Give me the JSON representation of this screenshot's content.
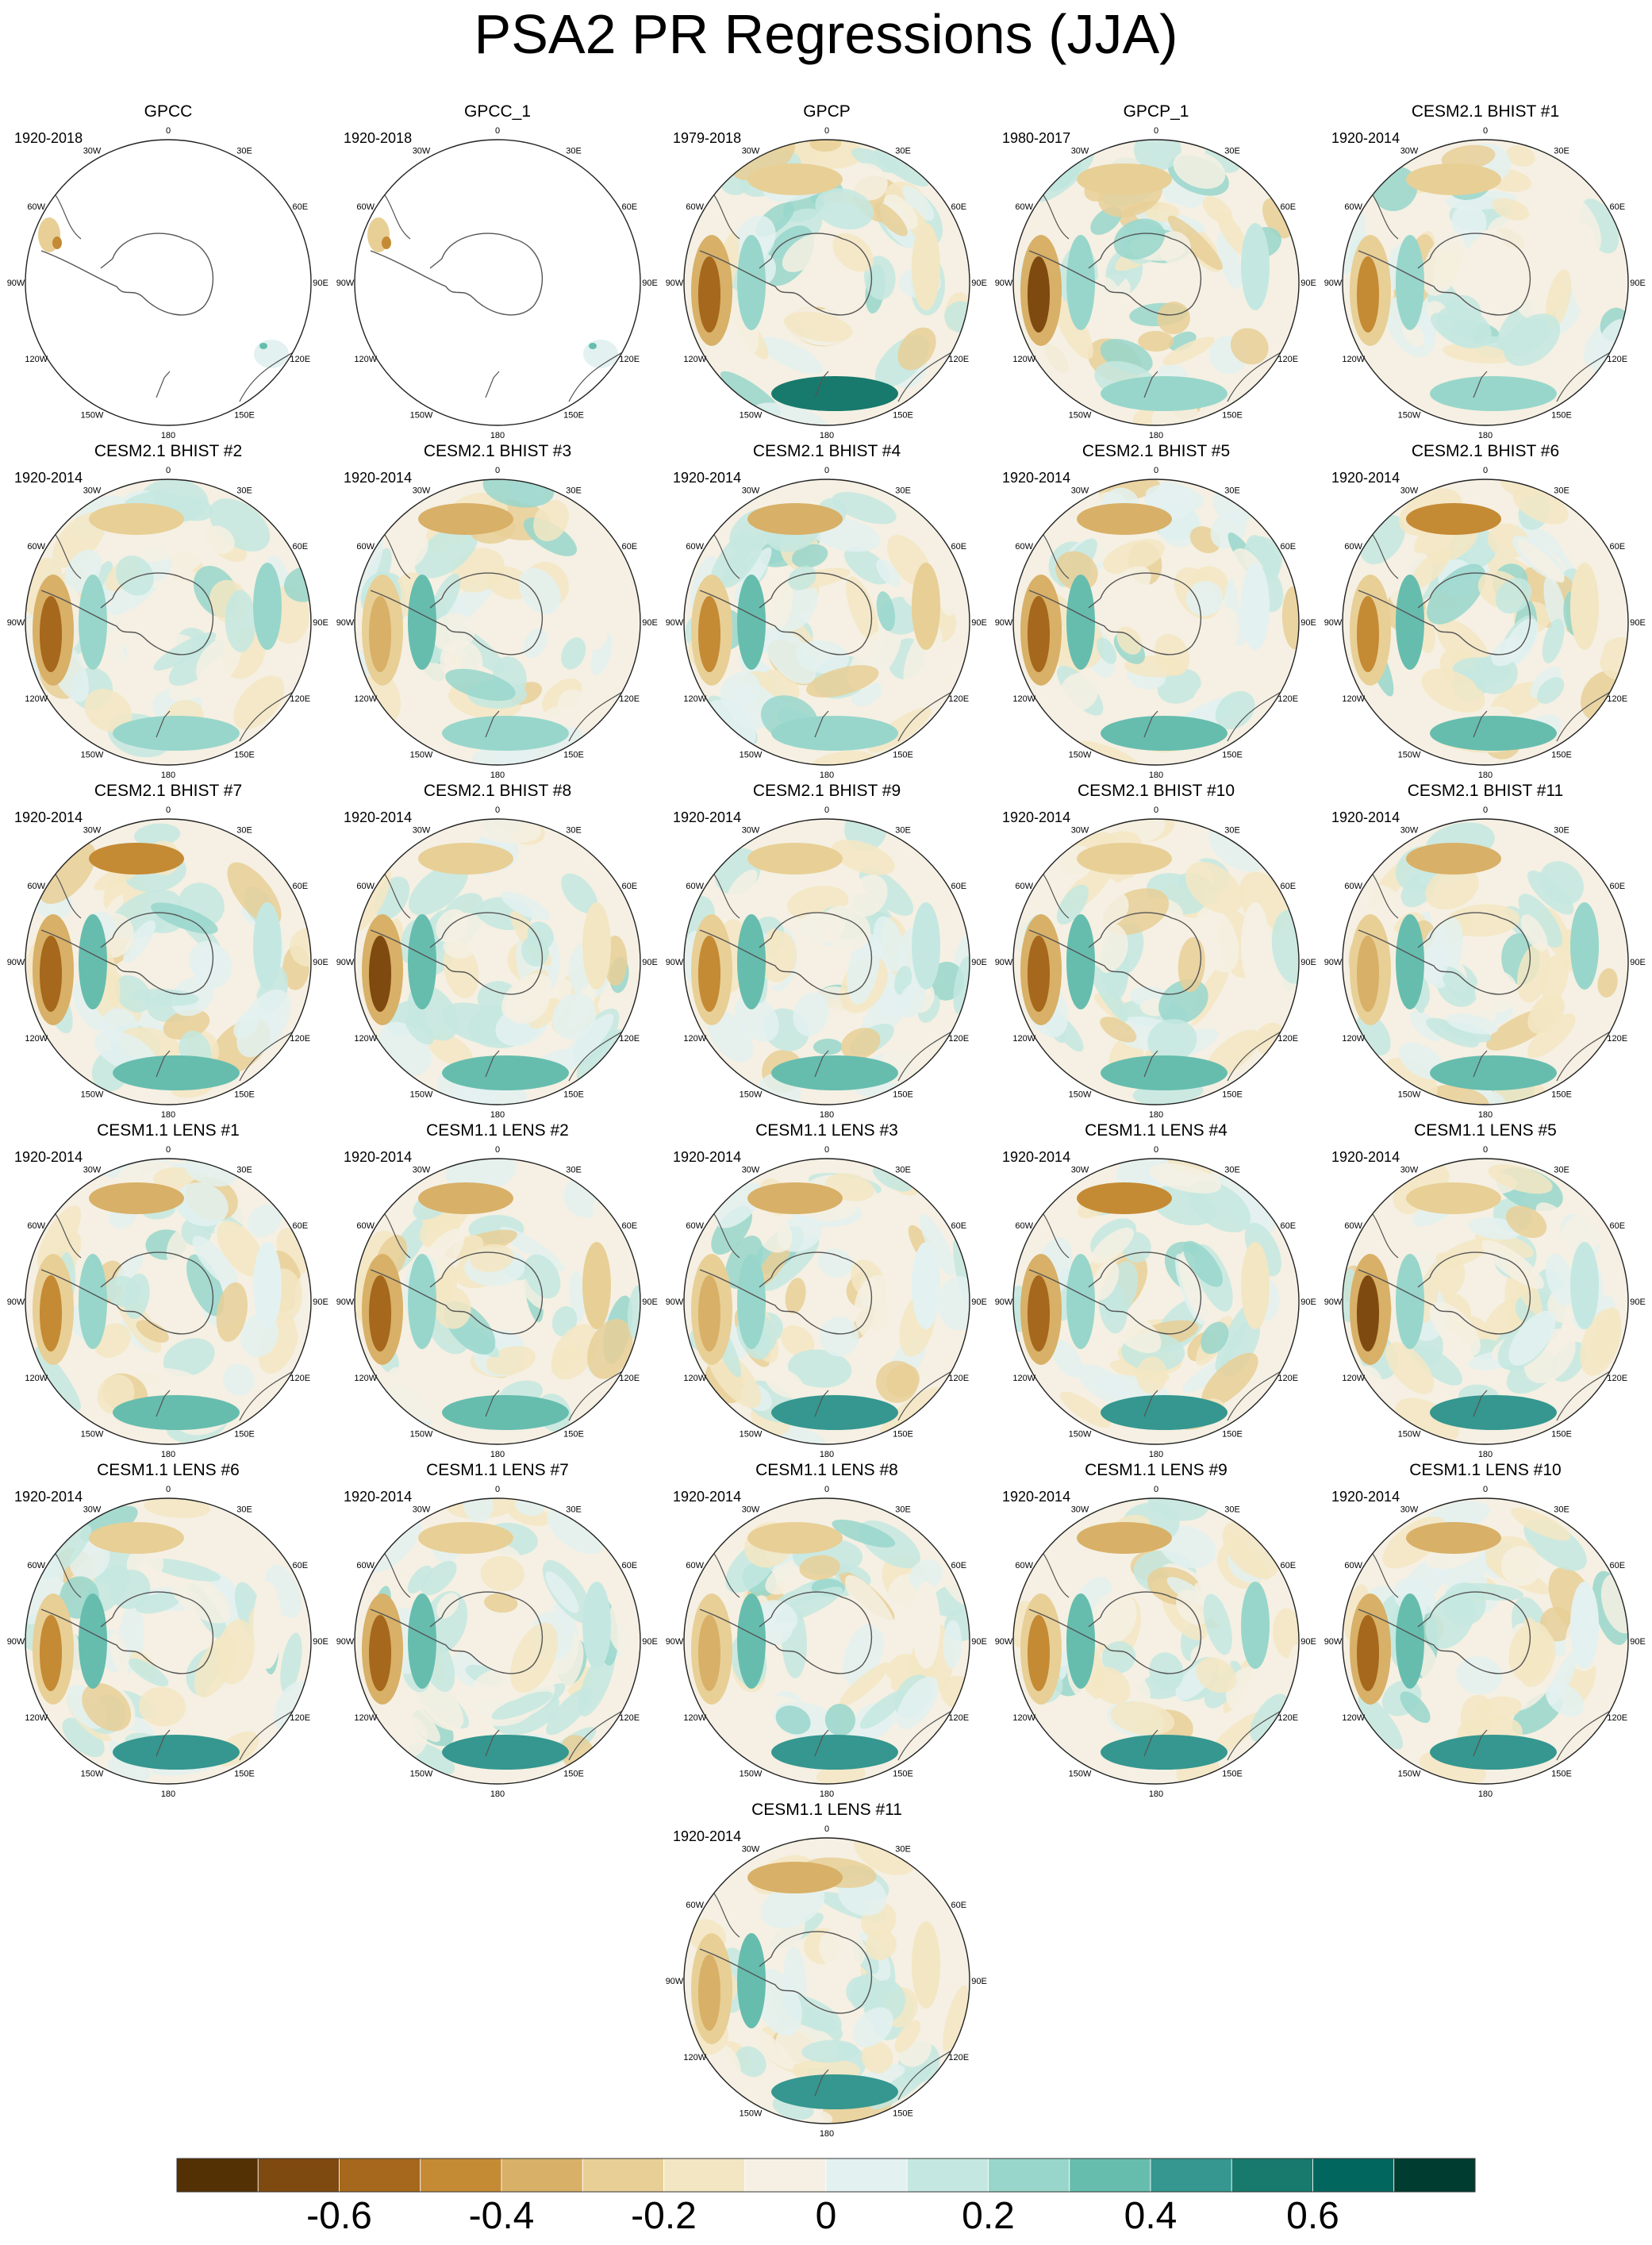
{
  "title": "PSA2 PR Regressions (JJA)",
  "panels": [
    {
      "title": "GPCC",
      "period": "1920-2018",
      "pattern": "sparse"
    },
    {
      "title": "GPCC_1",
      "period": "1920-2018",
      "pattern": "sparse"
    },
    {
      "title": "GPCP",
      "period": "1979-2018",
      "pattern": "obs"
    },
    {
      "title": "GPCP_1",
      "period": "1980-2017",
      "pattern": "obs"
    },
    {
      "title": "CESM2.1 BHIST #1",
      "period": "1920-2014",
      "pattern": "model"
    },
    {
      "title": "CESM2.1 BHIST #2",
      "period": "1920-2014",
      "pattern": "model"
    },
    {
      "title": "CESM2.1 BHIST #3",
      "period": "1920-2014",
      "pattern": "model"
    },
    {
      "title": "CESM2.1 BHIST #4",
      "period": "1920-2014",
      "pattern": "model"
    },
    {
      "title": "CESM2.1 BHIST #5",
      "period": "1920-2014",
      "pattern": "model"
    },
    {
      "title": "CESM2.1 BHIST #6",
      "period": "1920-2014",
      "pattern": "model"
    },
    {
      "title": "CESM2.1 BHIST #7",
      "period": "1920-2014",
      "pattern": "model"
    },
    {
      "title": "CESM2.1 BHIST #8",
      "period": "1920-2014",
      "pattern": "model"
    },
    {
      "title": "CESM2.1 BHIST #9",
      "period": "1920-2014",
      "pattern": "model"
    },
    {
      "title": "CESM2.1 BHIST #10",
      "period": "1920-2014",
      "pattern": "model"
    },
    {
      "title": "CESM2.1 BHIST #11",
      "period": "1920-2014",
      "pattern": "model"
    },
    {
      "title": "CESM1.1 LENS #1",
      "period": "1920-2014",
      "pattern": "model"
    },
    {
      "title": "CESM1.1 LENS #2",
      "period": "1920-2014",
      "pattern": "model"
    },
    {
      "title": "CESM1.1 LENS #3",
      "period": "1920-2014",
      "pattern": "model"
    },
    {
      "title": "CESM1.1 LENS #4",
      "period": "1920-2014",
      "pattern": "model"
    },
    {
      "title": "CESM1.1 LENS #5",
      "period": "1920-2014",
      "pattern": "model"
    },
    {
      "title": "CESM1.1 LENS #6",
      "period": "1920-2014",
      "pattern": "model"
    },
    {
      "title": "CESM1.1 LENS #7",
      "period": "1920-2014",
      "pattern": "model"
    },
    {
      "title": "CESM1.1 LENS #8",
      "period": "1920-2014",
      "pattern": "model"
    },
    {
      "title": "CESM1.1 LENS #9",
      "period": "1920-2014",
      "pattern": "model"
    },
    {
      "title": "CESM1.1 LENS #10",
      "period": "1920-2014",
      "pattern": "model"
    },
    {
      "title": "CESM1.1 LENS #11",
      "period": "1920-2014",
      "pattern": "model"
    }
  ],
  "longitude_labels": [
    "0",
    "30E",
    "60E",
    "90E",
    "120E",
    "150E",
    "180",
    "150W",
    "120W",
    "90W",
    "60W",
    "30W"
  ],
  "colorbar": {
    "colors": [
      "#543005",
      "#7f4a0f",
      "#a6681c",
      "#c58a34",
      "#d8b067",
      "#e8cf96",
      "#f3e6c3",
      "#f5f0e3",
      "#e3f1f0",
      "#c4e8e1",
      "#98d6cb",
      "#66bdae",
      "#35978f",
      "#177a6d",
      "#01665e",
      "#003c30"
    ],
    "ticks": [
      "-0.6",
      "-0.4",
      "-0.2",
      "0",
      "0.2",
      "0.4",
      "0.6"
    ]
  }
}
